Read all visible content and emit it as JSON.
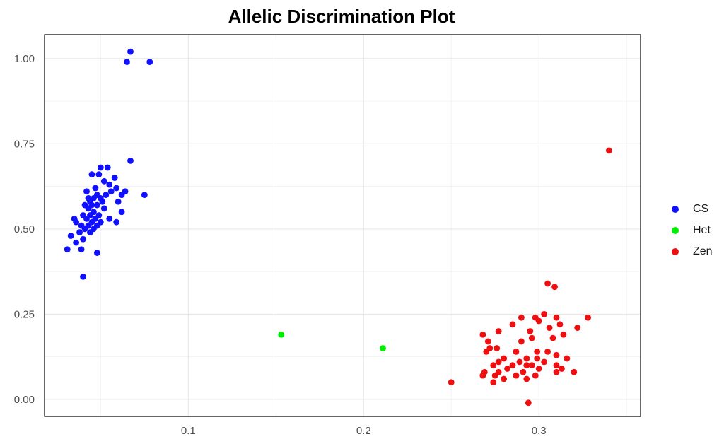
{
  "chart_data": {
    "type": "scatter",
    "title": "Allelic Discrimination Plot",
    "xlabel": "",
    "ylabel": "",
    "xlim": [
      0.018,
      0.358
    ],
    "ylim": [
      -0.05,
      1.07
    ],
    "x_ticks": [
      0.1,
      0.2,
      0.3
    ],
    "x_tick_labels": [
      "0.1",
      "0.2",
      "0.3"
    ],
    "y_ticks": [
      0.0,
      0.25,
      0.5,
      0.75,
      1.0
    ],
    "y_tick_labels": [
      "0.00",
      "0.25",
      "0.50",
      "0.75",
      "1.00"
    ],
    "grid": true,
    "legend_position": "right",
    "series": [
      {
        "name": "CS",
        "color": "#1010ff",
        "points": [
          [
            0.067,
            1.02
          ],
          [
            0.065,
            0.99
          ],
          [
            0.078,
            0.99
          ],
          [
            0.067,
            0.7
          ],
          [
            0.054,
            0.68
          ],
          [
            0.05,
            0.68
          ],
          [
            0.045,
            0.66
          ],
          [
            0.049,
            0.66
          ],
          [
            0.058,
            0.65
          ],
          [
            0.052,
            0.64
          ],
          [
            0.055,
            0.63
          ],
          [
            0.047,
            0.62
          ],
          [
            0.059,
            0.62
          ],
          [
            0.042,
            0.61
          ],
          [
            0.056,
            0.61
          ],
          [
            0.064,
            0.61
          ],
          [
            0.048,
            0.6
          ],
          [
            0.053,
            0.6
          ],
          [
            0.062,
            0.6
          ],
          [
            0.075,
            0.6
          ],
          [
            0.043,
            0.59
          ],
          [
            0.046,
            0.59
          ],
          [
            0.05,
            0.59
          ],
          [
            0.044,
            0.58
          ],
          [
            0.051,
            0.58
          ],
          [
            0.06,
            0.58
          ],
          [
            0.041,
            0.57
          ],
          [
            0.045,
            0.57
          ],
          [
            0.048,
            0.57
          ],
          [
            0.043,
            0.56
          ],
          [
            0.052,
            0.56
          ],
          [
            0.046,
            0.55
          ],
          [
            0.062,
            0.55
          ],
          [
            0.04,
            0.54
          ],
          [
            0.044,
            0.54
          ],
          [
            0.049,
            0.54
          ],
          [
            0.035,
            0.53
          ],
          [
            0.042,
            0.53
          ],
          [
            0.047,
            0.53
          ],
          [
            0.055,
            0.53
          ],
          [
            0.036,
            0.52
          ],
          [
            0.045,
            0.52
          ],
          [
            0.05,
            0.52
          ],
          [
            0.059,
            0.52
          ],
          [
            0.039,
            0.51
          ],
          [
            0.043,
            0.51
          ],
          [
            0.048,
            0.51
          ],
          [
            0.041,
            0.5
          ],
          [
            0.046,
            0.5
          ],
          [
            0.038,
            0.49
          ],
          [
            0.044,
            0.49
          ],
          [
            0.033,
            0.48
          ],
          [
            0.04,
            0.47
          ],
          [
            0.036,
            0.46
          ],
          [
            0.031,
            0.44
          ],
          [
            0.039,
            0.44
          ],
          [
            0.048,
            0.43
          ],
          [
            0.04,
            0.36
          ]
        ]
      },
      {
        "name": "Het",
        "color": "#00ee00",
        "points": [
          [
            0.153,
            0.19
          ],
          [
            0.211,
            0.15
          ]
        ]
      },
      {
        "name": "Zen",
        "color": "#ee1010",
        "points": [
          [
            0.34,
            0.73
          ],
          [
            0.305,
            0.34
          ],
          [
            0.309,
            0.33
          ],
          [
            0.328,
            0.24
          ],
          [
            0.303,
            0.25
          ],
          [
            0.29,
            0.24
          ],
          [
            0.298,
            0.24
          ],
          [
            0.31,
            0.24
          ],
          [
            0.3,
            0.23
          ],
          [
            0.285,
            0.22
          ],
          [
            0.312,
            0.22
          ],
          [
            0.322,
            0.21
          ],
          [
            0.306,
            0.21
          ],
          [
            0.295,
            0.2
          ],
          [
            0.277,
            0.2
          ],
          [
            0.314,
            0.19
          ],
          [
            0.268,
            0.19
          ],
          [
            0.296,
            0.18
          ],
          [
            0.308,
            0.18
          ],
          [
            0.29,
            0.17
          ],
          [
            0.271,
            0.17
          ],
          [
            0.276,
            0.15
          ],
          [
            0.272,
            0.15
          ],
          [
            0.299,
            0.14
          ],
          [
            0.287,
            0.14
          ],
          [
            0.305,
            0.14
          ],
          [
            0.27,
            0.14
          ],
          [
            0.31,
            0.13
          ],
          [
            0.293,
            0.12
          ],
          [
            0.28,
            0.12
          ],
          [
            0.299,
            0.12
          ],
          [
            0.316,
            0.12
          ],
          [
            0.289,
            0.11
          ],
          [
            0.303,
            0.11
          ],
          [
            0.277,
            0.11
          ],
          [
            0.293,
            0.1
          ],
          [
            0.285,
            0.1
          ],
          [
            0.274,
            0.1
          ],
          [
            0.296,
            0.1
          ],
          [
            0.31,
            0.1
          ],
          [
            0.282,
            0.09
          ],
          [
            0.3,
            0.09
          ],
          [
            0.313,
            0.09
          ],
          [
            0.277,
            0.08
          ],
          [
            0.291,
            0.08
          ],
          [
            0.269,
            0.08
          ],
          [
            0.31,
            0.08
          ],
          [
            0.32,
            0.08
          ],
          [
            0.275,
            0.07
          ],
          [
            0.287,
            0.07
          ],
          [
            0.298,
            0.07
          ],
          [
            0.268,
            0.07
          ],
          [
            0.28,
            0.06
          ],
          [
            0.293,
            0.06
          ],
          [
            0.274,
            0.05
          ],
          [
            0.25,
            0.05
          ],
          [
            0.294,
            -0.01
          ]
        ]
      }
    ]
  }
}
